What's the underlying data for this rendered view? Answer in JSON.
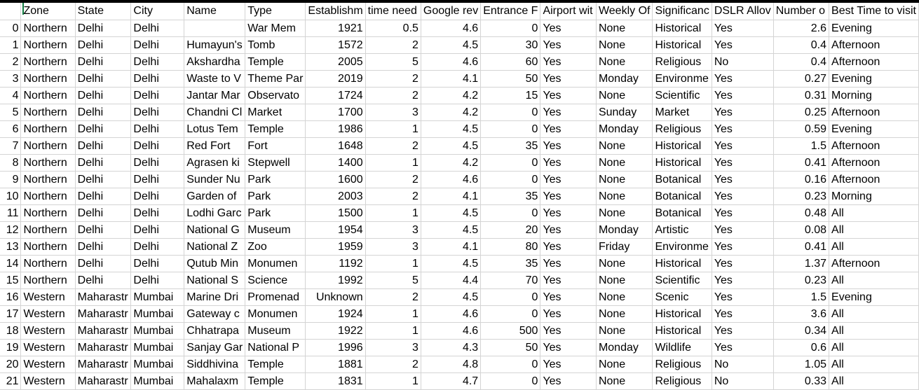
{
  "sheet": {
    "columns": [
      {
        "key": "index",
        "label": "",
        "width": 32,
        "align": "right"
      },
      {
        "key": "zone",
        "label": "Zone",
        "width": 80,
        "align": "left"
      },
      {
        "key": "state",
        "label": "State",
        "width": 80,
        "align": "left"
      },
      {
        "key": "city",
        "label": "City",
        "width": 80,
        "align": "left"
      },
      {
        "key": "name",
        "label": "Name",
        "width": 80,
        "align": "left"
      },
      {
        "key": "type",
        "label": "Type",
        "width": 80,
        "align": "left"
      },
      {
        "key": "established",
        "label": "Establishm",
        "width": 80,
        "align": "right"
      },
      {
        "key": "time_needed",
        "label": "time need",
        "width": 80,
        "align": "right"
      },
      {
        "key": "google_review",
        "label": "Google rev",
        "width": 80,
        "align": "right"
      },
      {
        "key": "entrance_fee",
        "label": "Entrance F",
        "width": 80,
        "align": "right"
      },
      {
        "key": "airport",
        "label": "Airport wit",
        "width": 80,
        "align": "left"
      },
      {
        "key": "weekly_off",
        "label": "Weekly Of",
        "width": 80,
        "align": "left"
      },
      {
        "key": "significance",
        "label": "Significanc",
        "width": 80,
        "align": "left"
      },
      {
        "key": "dslr",
        "label": "DSLR Allov",
        "width": 80,
        "align": "left"
      },
      {
        "key": "num_reviews",
        "label": "Number o",
        "width": 80,
        "align": "right"
      },
      {
        "key": "best_time",
        "label": "Best Time to visit",
        "width": 79,
        "align": "left"
      }
    ],
    "rows": [
      [
        "0",
        "Northern",
        "Delhi",
        "Delhi",
        "",
        "War Mem",
        "1921",
        "0.5",
        "4.6",
        "0",
        "Yes",
        "None",
        "Historical",
        "Yes",
        "2.6",
        "Evening"
      ],
      [
        "1",
        "Northern",
        "Delhi",
        "Delhi",
        "Humayun's",
        "Tomb",
        "1572",
        "2",
        "4.5",
        "30",
        "Yes",
        "None",
        "Historical",
        "Yes",
        "0.4",
        "Afternoon"
      ],
      [
        "2",
        "Northern",
        "Delhi",
        "Delhi",
        "Akshardha",
        "Temple",
        "2005",
        "5",
        "4.6",
        "60",
        "Yes",
        "None",
        "Religious",
        "No",
        "0.4",
        "Afternoon"
      ],
      [
        "3",
        "Northern",
        "Delhi",
        "Delhi",
        "Waste to V",
        "Theme Par",
        "2019",
        "2",
        "4.1",
        "50",
        "Yes",
        "Monday",
        "Environme",
        "Yes",
        "0.27",
        "Evening"
      ],
      [
        "4",
        "Northern",
        "Delhi",
        "Delhi",
        "Jantar Mar",
        "Observato",
        "1724",
        "2",
        "4.2",
        "15",
        "Yes",
        "None",
        "Scientific",
        "Yes",
        "0.31",
        "Morning"
      ],
      [
        "5",
        "Northern",
        "Delhi",
        "Delhi",
        "Chandni Cl",
        "Market",
        "1700",
        "3",
        "4.2",
        "0",
        "Yes",
        "Sunday",
        "Market",
        "Yes",
        "0.25",
        "Afternoon"
      ],
      [
        "6",
        "Northern",
        "Delhi",
        "Delhi",
        "Lotus Tem",
        "Temple",
        "1986",
        "1",
        "4.5",
        "0",
        "Yes",
        "Monday",
        "Religious",
        "Yes",
        "0.59",
        "Evening"
      ],
      [
        "7",
        "Northern",
        "Delhi",
        "Delhi",
        "Red Fort",
        "Fort",
        "1648",
        "2",
        "4.5",
        "35",
        "Yes",
        "None",
        "Historical",
        "Yes",
        "1.5",
        "Afternoon"
      ],
      [
        "8",
        "Northern",
        "Delhi",
        "Delhi",
        "Agrasen ki",
        "Stepwell",
        "1400",
        "1",
        "4.2",
        "0",
        "Yes",
        "None",
        "Historical",
        "Yes",
        "0.41",
        "Afternoon"
      ],
      [
        "9",
        "Northern",
        "Delhi",
        "Delhi",
        "Sunder Nu",
        "Park",
        "1600",
        "2",
        "4.6",
        "0",
        "Yes",
        "None",
        "Botanical",
        "Yes",
        "0.16",
        "Afternoon"
      ],
      [
        "10",
        "Northern",
        "Delhi",
        "Delhi",
        "Garden of",
        "Park",
        "2003",
        "2",
        "4.1",
        "35",
        "Yes",
        "None",
        "Botanical",
        "Yes",
        "0.23",
        "Morning"
      ],
      [
        "11",
        "Northern",
        "Delhi",
        "Delhi",
        "Lodhi Garc",
        "Park",
        "1500",
        "1",
        "4.5",
        "0",
        "Yes",
        "None",
        "Botanical",
        "Yes",
        "0.48",
        "All"
      ],
      [
        "12",
        "Northern",
        "Delhi",
        "Delhi",
        "National G",
        "Museum",
        "1954",
        "3",
        "4.5",
        "20",
        "Yes",
        "Monday",
        "Artistic",
        "Yes",
        "0.08",
        "All"
      ],
      [
        "13",
        "Northern",
        "Delhi",
        "Delhi",
        "National Z",
        "Zoo",
        "1959",
        "3",
        "4.1",
        "80",
        "Yes",
        "Friday",
        "Environme",
        "Yes",
        "0.41",
        "All"
      ],
      [
        "14",
        "Northern",
        "Delhi",
        "Delhi",
        "Qutub Min",
        "Monumen",
        "1192",
        "1",
        "4.5",
        "35",
        "Yes",
        "None",
        "Historical",
        "Yes",
        "1.37",
        "Afternoon"
      ],
      [
        "15",
        "Northern",
        "Delhi",
        "Delhi",
        "National S",
        "Science",
        "1992",
        "5",
        "4.4",
        "70",
        "Yes",
        "None",
        "Scientific",
        "Yes",
        "0.23",
        "All"
      ],
      [
        "16",
        "Western",
        "Maharastr",
        "Mumbai",
        "Marine Dri",
        "Promenad",
        "Unknown",
        "2",
        "4.5",
        "0",
        "Yes",
        "None",
        "Scenic",
        "Yes",
        "1.5",
        "Evening"
      ],
      [
        "17",
        "Western",
        "Maharastr",
        "Mumbai",
        "Gateway c",
        "Monumen",
        "1924",
        "1",
        "4.6",
        "0",
        "Yes",
        "None",
        "Historical",
        "Yes",
        "3.6",
        "All"
      ],
      [
        "18",
        "Western",
        "Maharastr",
        "Mumbai",
        "Chhatrapa",
        "Museum",
        "1922",
        "1",
        "4.6",
        "500",
        "Yes",
        "None",
        "Historical",
        "Yes",
        "0.34",
        "All"
      ],
      [
        "19",
        "Western",
        "Maharastr",
        "Mumbai",
        "Sanjay Gar",
        "National P",
        "1996",
        "3",
        "4.3",
        "50",
        "Yes",
        "Monday",
        "Wildlife",
        "Yes",
        "0.6",
        "All"
      ],
      [
        "20",
        "Western",
        "Maharastr",
        "Mumbai",
        "Siddhivina",
        "Temple",
        "1881",
        "2",
        "4.8",
        "0",
        "Yes",
        "None",
        "Religious",
        "No",
        "1.05",
        "All"
      ],
      [
        "21",
        "Western",
        "Maharastr",
        "Mumbai",
        "Mahalaxm",
        "Temple",
        "1831",
        "1",
        "4.7",
        "0",
        "Yes",
        "None",
        "Religious",
        "No",
        "0.33",
        "All"
      ]
    ]
  }
}
